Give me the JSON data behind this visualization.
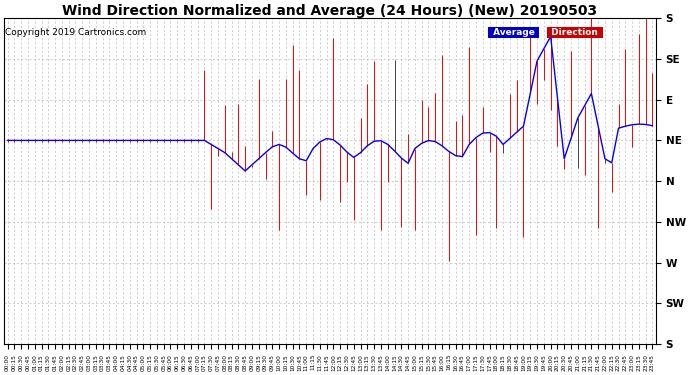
{
  "title": "Wind Direction Normalized and Average (24 Hours) (New) 20190503",
  "copyright": "Copyright 2019 Cartronics.com",
  "ytick_labels": [
    "S",
    "SW",
    "W",
    "NW",
    "N",
    "NE",
    "E",
    "SE",
    "S"
  ],
  "ytick_values": [
    0,
    1,
    2,
    3,
    4,
    5,
    6,
    7,
    8
  ],
  "avg_color": "#0000ff",
  "dir_color": "#ff0000",
  "dark_dir_color": "#444444",
  "background_color": "#ffffff",
  "grid_color": "#bbbbbb",
  "title_fontsize": 10,
  "copyright_fontsize": 6.5,
  "legend_avg_bg": "#0000cc",
  "legend_dir_bg": "#cc0000",
  "legend_text_color": "#ffffff",
  "n_points": 96
}
